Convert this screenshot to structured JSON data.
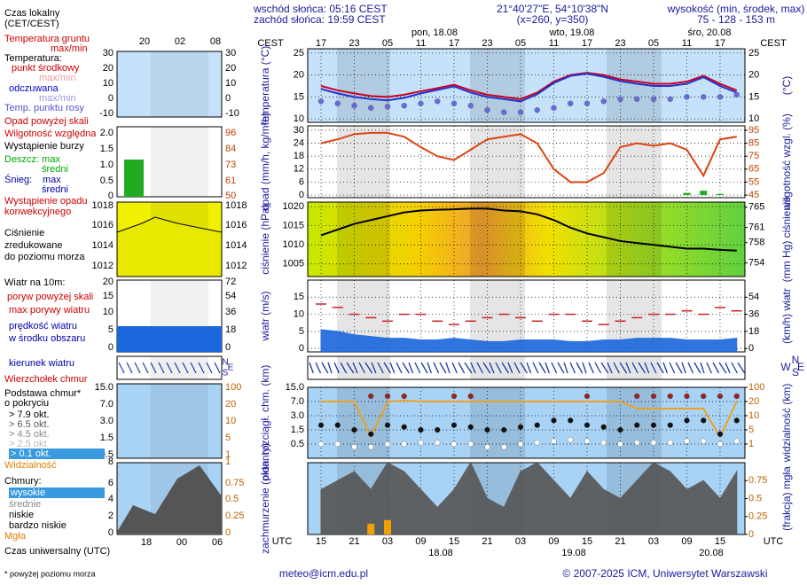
{
  "header": {
    "sunrise": "wschód słońca: 05:16 CEST",
    "sunset": "zachód słońca: 19:59 CEST",
    "coords": "21°40'27\"E, 54°10'38\"N",
    "grid": "(x=260,  y=350)",
    "elevation_title": "wysokość (min, środek, max)",
    "elevation": "75 - 128 - 153 m"
  },
  "time": {
    "local": "CEST",
    "utc": "UTC",
    "cest": [
      "17",
      null,
      "23",
      null,
      "05",
      null,
      "11",
      null,
      "17",
      null,
      "23",
      null,
      "05",
      null,
      "11",
      null,
      "17",
      null,
      "23",
      null,
      "05",
      null,
      "11",
      null,
      "17",
      null
    ],
    "utc_hours": [
      "15",
      null,
      "21",
      null,
      "03",
      null,
      "09",
      null,
      "15",
      null,
      "21",
      null,
      "03",
      null,
      "09",
      null,
      "15",
      null,
      "21",
      null,
      "03",
      null,
      "09",
      null,
      "15",
      null
    ],
    "days_top": [
      "pon, 18.08",
      "wto, 19.08",
      "śro, 20.08"
    ],
    "days_bottom": [
      "18.08",
      "19.08",
      "20.08"
    ]
  },
  "compass": {
    "n": "N",
    "s": "S",
    "w": "W",
    "e": "E"
  },
  "legend": {
    "local_time": "Czas lokalny",
    "local_zone": "(CET/CEST)",
    "top_hours": [
      "20",
      "02",
      "08"
    ],
    "bottom_hours": [
      "18",
      "00",
      "06"
    ],
    "universal_time": "Czas uniwersalny (UTC)",
    "items": [
      "Temperatura gruntu",
      "max/min",
      "Temperatura:",
      "max/min",
      "max/min",
      "Opad powyżej skali",
      "Wystąpienie burzy",
      "Deszcz: max",
      "średni",
      "Śnieg:",
      "max",
      "średni",
      "Wystąpienie opadu",
      "konwekcyjnego",
      "Ciśnienie",
      "zredukowane",
      "do poziomu morza",
      "Wiatr na 10m:",
      "poryw powyżej skali",
      "w środku obszaru",
      "kierunek wiatru",
      "Wierzchołek chmur",
      "Podstawa chmur*",
      "o pokryciu",
      "> 4.5 okt.",
      "> 2.5 okt.",
      "Chmury:",
      "wysokie",
      "średnie",
      "niskie",
      "bardzo niskie"
    ],
    "mini_ticks": [
      {
        "left": [
          "30",
          "20",
          "10",
          "0",
          "-10"
        ],
        "right": [
          "30",
          "20",
          "10",
          "0",
          "-10"
        ]
      },
      {
        "left": [
          "2.0",
          "1.5",
          "1.0",
          "0.5",
          "0"
        ],
        "right": [
          "96",
          "84",
          "73",
          "61",
          "50"
        ]
      },
      {
        "left": [
          "1018",
          "1016",
          "1014",
          "1012"
        ],
        "right": [
          "1018",
          "1016",
          "1014",
          "1012"
        ]
      },
      {
        "left": [
          "20",
          "15",
          "10",
          "5",
          "0"
        ],
        "right": [
          "72",
          "54",
          "36",
          "18",
          "0"
        ]
      },
      {
        "left": [
          "15.0",
          "7.0",
          "3.0",
          "1.5",
          "0.5"
        ],
        "right": [
          "100",
          "20",
          "10",
          "5",
          "1"
        ]
      },
      {
        "left": [
          "8",
          "6",
          "4",
          "2",
          "0"
        ],
        "right": [
          "1",
          "0.75",
          "0.5",
          "0.25",
          "0"
        ]
      }
    ]
  },
  "footer": {
    "note": "* powyżej poziomu morza",
    "email": "meteo@icm.edu.pl",
    "copyright": "© 2007-2025 ICM, Uniwersytet Warszawski"
  },
  "chart_data": [
    {
      "type": "line",
      "ylabel": "temperatura (°C)",
      "y2label": "(°C)",
      "background": "#c6e2fa",
      "ylim": [
        9.2,
        26
      ],
      "yticks": [
        10,
        15,
        20,
        25
      ],
      "series": [
        {
          "name": "punkt środkowy",
          "color": "#cc0022",
          "mark": "line",
          "values": [
            17.5,
            16.5,
            15.8,
            15.2,
            15,
            15.5,
            16.3,
            17,
            17.8,
            16.5,
            15.5,
            15,
            14.5,
            16,
            18.5,
            20,
            20.5,
            20,
            19,
            18.5,
            18,
            18,
            18.5,
            19.8,
            18,
            16.5
          ]
        },
        {
          "name": "odczuwana",
          "color": "#2233cc",
          "mark": "line",
          "values": [
            16.8,
            15.8,
            15,
            14.5,
            14.2,
            14.8,
            15.8,
            16.6,
            17.4,
            16,
            15,
            14.5,
            14,
            15.6,
            18.2,
            19.8,
            20.3,
            19.6,
            18.6,
            18,
            17.5,
            17.5,
            18,
            19.5,
            17.5,
            16
          ]
        },
        {
          "name": "Temp. punktu rosy",
          "color": "#6a6ae0",
          "mark": "dots",
          "values": [
            14,
            13.5,
            13,
            12.5,
            12.8,
            13,
            13.5,
            14,
            13.5,
            13,
            12,
            11.5,
            11.5,
            12,
            12.5,
            13.5,
            13.5,
            14,
            14.5,
            14.5,
            14.5,
            14.5,
            15,
            15,
            15,
            15.5
          ]
        }
      ]
    },
    {
      "type": "line",
      "ylabel": "opad (mm/h, kg/m²h)",
      "y2label": "wilgotność wzgl. (%)",
      "background": "#ffffff",
      "y2color": "#c04000",
      "ylim": [
        -1.2,
        32
      ],
      "yticks": [
        0,
        6,
        12,
        18,
        24,
        30
      ],
      "y2lim": [
        43,
        98.4
      ],
      "y2ticks": [
        45,
        55,
        65,
        75,
        85,
        95
      ],
      "series": [
        {
          "color": "#22aa22",
          "mark": "bars",
          "values": [
            0,
            0,
            0,
            0,
            0,
            0,
            0,
            0,
            0,
            0,
            0,
            0,
            0,
            0,
            0,
            0,
            0,
            0,
            0,
            0,
            0,
            0,
            1,
            2,
            0.5,
            0
          ]
        },
        {
          "name": "Wilgotność względna",
          "color": "#dd4411",
          "mark": "line",
          "axis": "y2",
          "values": [
            85,
            88,
            92,
            93,
            93,
            90,
            82,
            75,
            72,
            80,
            88,
            90,
            92,
            85,
            65,
            55,
            55,
            62,
            82,
            85,
            83,
            85,
            80,
            60,
            88,
            90
          ]
        }
      ]
    },
    {
      "type": "line",
      "ylabel": "ciśnienie (hPa)",
      "y2label": "(mm Hg) ciśnienie",
      "background": "url(#pgrad)",
      "ylim": [
        1001.7,
        1021.2
      ],
      "yticks": [
        1005,
        1010,
        1015,
        1020
      ],
      "y2lim": [
        751.3,
        766
      ],
      "y2ticks": [
        754,
        758,
        761,
        765
      ],
      "series": [
        {
          "color": "#000000",
          "mark": "line",
          "values": [
            1012.5,
            1014,
            1015.5,
            1016.5,
            1017.5,
            1018.5,
            1019,
            1019.2,
            1019.3,
            1019.5,
            1019.5,
            1019,
            1018.8,
            1018,
            1016.5,
            1014.5,
            1013,
            1012,
            1011,
            1010.5,
            1010,
            1009.5,
            1009,
            1009,
            1008.7,
            1008.5
          ]
        }
      ]
    },
    {
      "type": "line",
      "ylabel": "wiatr (m/s)",
      "y2label": "(km/h) wiatr",
      "background": "#ffffff",
      "ylim": [
        -1,
        20
      ],
      "yticks": [
        0,
        5,
        10,
        15
      ],
      "y2lim": [
        -3.6,
        72
      ],
      "y2ticks": [
        0,
        18,
        36,
        54
      ],
      "series": [
        {
          "name": "prędkość wiatru",
          "color": "#1a66dd",
          "mark": "area",
          "values": [
            5.5,
            5,
            4,
            3.5,
            3,
            3,
            2.5,
            2.5,
            3,
            2.5,
            2,
            2,
            2.5,
            2.5,
            2.5,
            2,
            2,
            2.5,
            2.5,
            3,
            3,
            3,
            2.5,
            2.5,
            2.5,
            3
          ]
        },
        {
          "name": "max porywy wiatru",
          "color": "#cc2222",
          "mark": "dashes",
          "values": [
            13,
            12,
            10,
            9,
            8,
            10,
            10,
            8,
            7,
            8,
            9,
            10,
            9,
            8,
            10,
            10,
            8,
            7,
            8,
            9,
            10,
            10,
            11,
            10,
            12,
            11
          ]
        }
      ]
    },
    {
      "type": "line",
      "ylabel": "pion. rozciągł. chm. (km)",
      "y2label": "widzialność (km)",
      "background": "#a9d3f5",
      "y2color": "#c06000",
      "scale": "piecewise",
      "ylim": [
        0,
        15
      ],
      "yticks": [
        0.5,
        1.5,
        {
          "value": 3,
          "label": "3.0"
        },
        {
          "value": 7,
          "label": "7.0"
        },
        {
          "value": 15,
          "label": "15.0"
        }
      ],
      "y2lim": [
        0,
        100
      ],
      "y2ticks": [
        1,
        5,
        10,
        20,
        100
      ],
      "series": [
        {
          "name": "Widzialność",
          "color": "#f0a020",
          "mark": "line",
          "axis": "y2",
          "values": [
            20,
            20,
            20,
            3,
            20,
            25,
            20,
            20,
            20,
            20,
            20,
            20,
            20,
            20,
            20,
            20,
            20,
            20,
            20,
            15,
            15,
            15,
            15,
            15,
            3,
            20
          ]
        },
        {
          "name": "> 7.9 okt.",
          "color": "#992222",
          "mark": "dots",
          "values": [
            null,
            null,
            null,
            10,
            10,
            10,
            null,
            null,
            10,
            10,
            null,
            null,
            null,
            null,
            null,
            null,
            10,
            null,
            null,
            10,
            10,
            10,
            10,
            10,
            10,
            10
          ]
        },
        {
          "name": "> 6.5 okt.",
          "color": "#111111",
          "mark": "dots",
          "values": [
            2,
            2,
            1.5,
            1.2,
            2,
            1.8,
            1.5,
            1.5,
            2,
            1.8,
            1.5,
            1.5,
            1.8,
            2,
            2.5,
            2.5,
            2,
            1.8,
            1.5,
            2,
            2,
            2,
            2.5,
            2.5,
            1.2,
            2.5
          ]
        },
        {
          "name": "> 0.1 okt.",
          "color": "#ffffff",
          "mark": "dots",
          "values": [
            0.5,
            0.5,
            0.4,
            0.4,
            0.5,
            0.5,
            0.6,
            0.6,
            0.5,
            0.5,
            0.4,
            0.4,
            0.5,
            0.6,
            0.7,
            0.8,
            0.7,
            0.6,
            0.5,
            0.6,
            0.6,
            0.6,
            0.7,
            0.7,
            0.5,
            0.7
          ]
        }
      ]
    },
    {
      "type": "line",
      "ylabel": "zachmurzenie (oktanty)",
      "y2label": "(frakcja) mgła",
      "background": "#a9d3f5",
      "y2color": "#c06000",
      "ylim": [
        0,
        8
      ],
      "y2lim": [
        0,
        1
      ],
      "y2ticks": [
        0,
        0.25,
        0.5,
        0.75
      ],
      "series": [
        {
          "color": "#555555",
          "mark": "area",
          "values": [
            5,
            6,
            7,
            5,
            8,
            7,
            5,
            3,
            5,
            8,
            4,
            3,
            7,
            8,
            6,
            4,
            7,
            5,
            4,
            6,
            8,
            7,
            5,
            6,
            4,
            7
          ]
        },
        {
          "name": "Mgła",
          "color": "#f0a000",
          "mark": "bars",
          "axis": "y2",
          "values": [
            0,
            0,
            0,
            0.15,
            0.2,
            0,
            0,
            0,
            0,
            0,
            0,
            0,
            0,
            0,
            0,
            0,
            0,
            0,
            0,
            0,
            0,
            0,
            0,
            0,
            0,
            0
          ]
        }
      ]
    }
  ]
}
